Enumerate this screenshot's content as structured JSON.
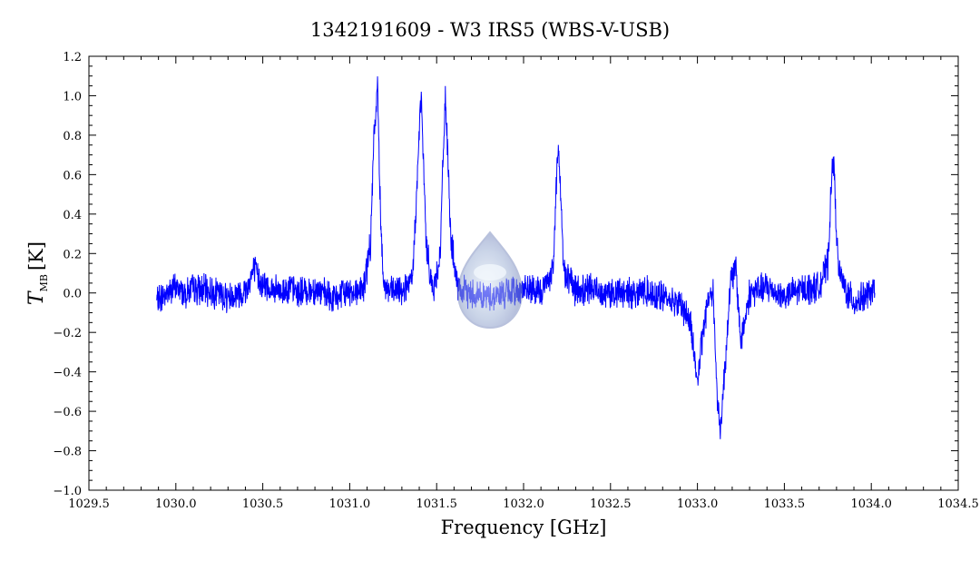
{
  "chart_data": {
    "type": "line",
    "title": "1342191609 - W3 IRS5 (WBS-V-USB)",
    "xlabel": "Frequency [GHz]",
    "ylabel": {
      "symbol": "T",
      "subscript": "MB",
      "unit": "[K]"
    },
    "xlim": [
      1029.5,
      1034.5
    ],
    "ylim": [
      -1.0,
      1.2
    ],
    "xticks": [
      1029.5,
      1030.0,
      1030.5,
      1031.0,
      1031.5,
      1032.0,
      1032.5,
      1033.0,
      1033.5,
      1034.0,
      1034.5
    ],
    "xtick_labels": [
      "1029.5",
      "1030.0",
      "1030.5",
      "1031.0",
      "1031.5",
      "1032.0",
      "1032.5",
      "1033.0",
      "1033.5",
      "1034.0",
      "1034.5"
    ],
    "yticks": [
      -1.0,
      -0.8,
      -0.6,
      -0.4,
      -0.2,
      0.0,
      0.2,
      0.4,
      0.6,
      0.8,
      1.0,
      1.2
    ],
    "ytick_labels": [
      "−1.0",
      "−0.8",
      "−0.6",
      "−0.4",
      "−0.2",
      "0.0",
      "0.2",
      "0.4",
      "0.6",
      "0.8",
      "1.0",
      "1.2"
    ],
    "grid": false,
    "series": [
      {
        "color": "#0000ff",
        "x": [
          1029.89,
          1029.95,
          1030.0,
          1030.05,
          1030.1,
          1030.2,
          1030.3,
          1030.4,
          1030.45,
          1030.5,
          1030.6,
          1030.65,
          1030.7,
          1030.8,
          1030.9,
          1031.0,
          1031.08,
          1031.12,
          1031.14,
          1031.16,
          1031.18,
          1031.2,
          1031.25,
          1031.3,
          1031.36,
          1031.39,
          1031.41,
          1031.44,
          1031.48,
          1031.52,
          1031.55,
          1031.58,
          1031.62,
          1031.7,
          1031.8,
          1031.9,
          1032.0,
          1032.1,
          1032.17,
          1032.2,
          1032.23,
          1032.3,
          1032.4,
          1032.5,
          1032.6,
          1032.7,
          1032.8,
          1032.9,
          1032.96,
          1033.0,
          1033.03,
          1033.06,
          1033.09,
          1033.11,
          1033.13,
          1033.16,
          1033.19,
          1033.22,
          1033.25,
          1033.3,
          1033.4,
          1033.5,
          1033.6,
          1033.7,
          1033.75,
          1033.78,
          1033.81,
          1033.85,
          1033.9,
          1034.0,
          1034.02
        ],
        "y": [
          -0.04,
          0.0,
          0.03,
          0.0,
          0.02,
          0.01,
          -0.02,
          0.01,
          0.12,
          0.04,
          0.0,
          0.03,
          0.0,
          0.02,
          -0.03,
          0.01,
          0.02,
          0.25,
          0.8,
          1.04,
          0.3,
          0.03,
          0.0,
          0.02,
          0.05,
          0.6,
          1.02,
          0.25,
          0.0,
          0.2,
          1.02,
          0.3,
          0.01,
          0.0,
          -0.02,
          0.0,
          0.02,
          0.0,
          0.12,
          0.8,
          0.12,
          0.01,
          0.02,
          0.0,
          0.0,
          0.01,
          -0.02,
          -0.05,
          -0.15,
          -0.45,
          -0.22,
          -0.03,
          0.02,
          -0.45,
          -0.72,
          -0.35,
          0.05,
          0.13,
          -0.25,
          0.0,
          0.03,
          -0.02,
          0.02,
          0.03,
          0.15,
          0.72,
          0.12,
          0.02,
          -0.05,
          0.0,
          0.0
        ]
      }
    ]
  }
}
